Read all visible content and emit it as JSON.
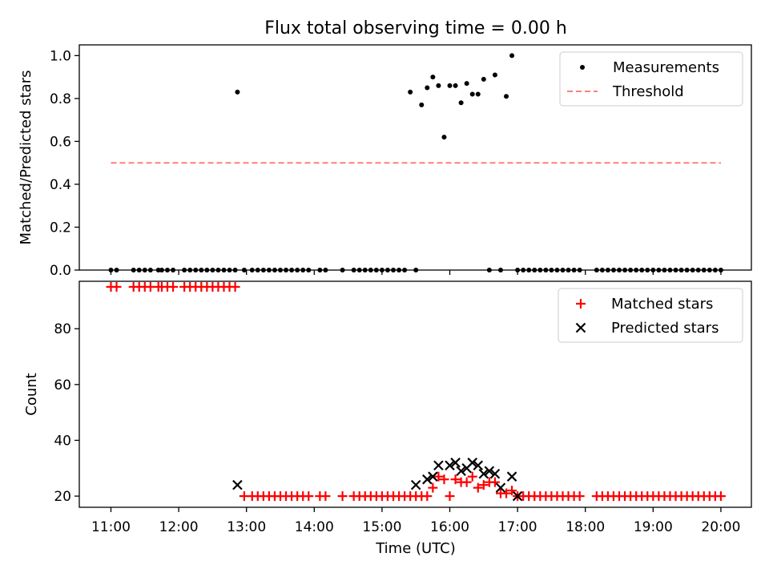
{
  "figure": {
    "title": "Flux total observing time = 0.00 h",
    "xlabel": "Time (UTC)"
  },
  "colors": {
    "measurements": "#000000",
    "threshold": "#ff7f7f",
    "matched": "#ff0000",
    "predicted": "#000000"
  },
  "chart_data": [
    {
      "type": "scatter",
      "ylabel": "Matched/Predicted stars",
      "xlim": [
        "10:32",
        "20:27"
      ],
      "ylim": [
        0,
        1.05
      ],
      "grid": false,
      "legend_placement": "top-right",
      "x_ticks": [
        "11:00",
        "12:00",
        "13:00",
        "14:00",
        "15:00",
        "16:00",
        "17:00",
        "18:00",
        "19:00",
        "20:00"
      ],
      "y_ticks": [
        "0.0",
        "0.2",
        "0.4",
        "0.6",
        "0.8",
        "1.0"
      ],
      "series": [
        {
          "name": "Measurements",
          "kind": "points",
          "x": [
            "11:00",
            "11:05",
            "11:20",
            "11:25",
            "11:30",
            "11:35",
            "11:42",
            "11:45",
            "11:50",
            "11:55",
            "12:05",
            "12:10",
            "12:15",
            "12:20",
            "12:25",
            "12:30",
            "12:35",
            "12:40",
            "12:45",
            "12:50",
            "12:52",
            "12:58",
            "13:05",
            "13:10",
            "13:15",
            "13:20",
            "13:25",
            "13:30",
            "13:35",
            "13:40",
            "13:45",
            "13:50",
            "13:55",
            "14:05",
            "14:10",
            "14:25",
            "14:35",
            "14:40",
            "14:45",
            "14:50",
            "14:55",
            "15:00",
            "15:05",
            "15:10",
            "15:15",
            "15:20",
            "15:25",
            "15:30",
            "15:35",
            "15:40",
            "15:45",
            "15:50",
            "15:55",
            "16:00",
            "16:05",
            "16:10",
            "16:15",
            "16:20",
            "16:25",
            "16:30",
            "16:35",
            "16:40",
            "16:45",
            "16:50",
            "16:55",
            "17:00",
            "17:05",
            "17:10",
            "17:15",
            "17:20",
            "17:25",
            "17:30",
            "17:35",
            "17:40",
            "17:45",
            "17:50",
            "17:55",
            "18:10",
            "18:15",
            "18:20",
            "18:25",
            "18:30",
            "18:35",
            "18:40",
            "18:45",
            "18:50",
            "18:55",
            "19:00",
            "19:05",
            "19:10",
            "19:15",
            "19:20",
            "19:25",
            "19:30",
            "19:35",
            "19:40",
            "19:45",
            "19:50",
            "19:55",
            "20:00"
          ],
          "y": [
            0,
            0,
            0,
            0,
            0,
            0,
            0,
            0,
            0,
            0,
            0,
            0,
            0,
            0,
            0,
            0,
            0,
            0,
            0,
            0,
            0.83,
            0,
            0,
            0,
            0,
            0,
            0,
            0,
            0,
            0,
            0,
            0,
            0,
            0,
            0,
            0,
            0,
            0,
            0,
            0,
            0,
            0,
            0,
            0,
            0,
            0,
            0.83,
            0,
            0.77,
            0.85,
            0.9,
            0.86,
            0.62,
            0.86,
            0.86,
            0.78,
            0.87,
            0.82,
            0.82,
            0.89,
            0,
            0.91,
            0,
            0.81,
            1.0,
            0,
            0,
            0,
            0,
            0,
            0,
            0,
            0,
            0,
            0,
            0,
            0,
            0,
            0,
            0,
            0,
            0,
            0,
            0,
            0,
            0,
            0,
            0,
            0,
            0,
            0,
            0,
            0,
            0,
            0,
            0,
            0,
            0,
            0,
            0
          ]
        },
        {
          "name": "Threshold",
          "kind": "dashed-line",
          "x": [
            "11:00",
            "20:00"
          ],
          "y": [
            0.5,
            0.5
          ]
        }
      ]
    },
    {
      "type": "scatter",
      "ylabel": "Count",
      "xlim": [
        "10:32",
        "20:27"
      ],
      "ylim": [
        16,
        97
      ],
      "grid": false,
      "legend_placement": "top-right",
      "x_ticks": [
        "11:00",
        "12:00",
        "13:00",
        "14:00",
        "15:00",
        "16:00",
        "17:00",
        "18:00",
        "19:00",
        "20:00"
      ],
      "y_ticks": [
        "20",
        "40",
        "60",
        "80"
      ],
      "series": [
        {
          "name": "Matched stars",
          "marker": "plus",
          "x": [
            "11:00",
            "11:05",
            "11:20",
            "11:25",
            "11:30",
            "11:35",
            "11:42",
            "11:45",
            "11:50",
            "11:55",
            "12:05",
            "12:10",
            "12:15",
            "12:20",
            "12:25",
            "12:30",
            "12:35",
            "12:40",
            "12:45",
            "12:50",
            "12:58",
            "13:05",
            "13:10",
            "13:15",
            "13:20",
            "13:25",
            "13:30",
            "13:35",
            "13:40",
            "13:45",
            "13:50",
            "13:55",
            "14:05",
            "14:10",
            "14:25",
            "14:35",
            "14:40",
            "14:45",
            "14:50",
            "14:55",
            "15:00",
            "15:05",
            "15:10",
            "15:15",
            "15:20",
            "15:25",
            "15:30",
            "15:35",
            "15:40",
            "15:45",
            "15:50",
            "15:55",
            "16:00",
            "16:05",
            "16:10",
            "16:15",
            "16:20",
            "16:25",
            "16:30",
            "16:35",
            "16:40",
            "16:45",
            "16:50",
            "16:55",
            "17:00",
            "17:05",
            "17:10",
            "17:15",
            "17:20",
            "17:25",
            "17:30",
            "17:35",
            "17:40",
            "17:45",
            "17:50",
            "17:55",
            "18:10",
            "18:15",
            "18:20",
            "18:25",
            "18:30",
            "18:35",
            "18:40",
            "18:45",
            "18:50",
            "18:55",
            "19:00",
            "19:05",
            "19:10",
            "19:15",
            "19:20",
            "19:25",
            "19:30",
            "19:35",
            "19:40",
            "19:45",
            "19:50",
            "19:55",
            "20:00"
          ],
          "y": [
            95,
            95,
            95,
            95,
            95,
            95,
            95,
            95,
            95,
            95,
            95,
            95,
            95,
            95,
            95,
            95,
            95,
            95,
            95,
            95,
            20,
            20,
            20,
            20,
            20,
            20,
            20,
            20,
            20,
            20,
            20,
            20,
            20,
            20,
            20,
            20,
            20,
            20,
            20,
            20,
            20,
            20,
            20,
            20,
            20,
            20,
            20,
            20,
            20,
            23,
            27,
            26,
            20,
            26,
            25,
            25,
            27,
            23,
            24,
            25,
            25,
            21,
            21,
            22,
            20,
            20,
            20,
            20,
            20,
            20,
            20,
            20,
            20,
            20,
            20,
            20,
            20,
            20,
            20,
            20,
            20,
            20,
            20,
            20,
            20,
            20,
            20,
            20,
            20,
            20,
            20,
            20,
            20,
            20,
            20,
            20,
            20,
            20,
            20
          ]
        },
        {
          "name": "Predicted stars",
          "marker": "x",
          "x": [
            "12:52",
            "15:30",
            "15:40",
            "15:45",
            "15:50",
            "16:00",
            "16:05",
            "16:10",
            "16:15",
            "16:20",
            "16:25",
            "16:30",
            "16:35",
            "16:40",
            "16:45",
            "16:55",
            "17:00"
          ],
          "y": [
            24,
            24,
            26,
            27,
            31,
            31,
            32,
            29,
            30,
            32,
            31,
            28,
            29,
            28,
            23,
            27,
            20
          ]
        }
      ]
    }
  ]
}
